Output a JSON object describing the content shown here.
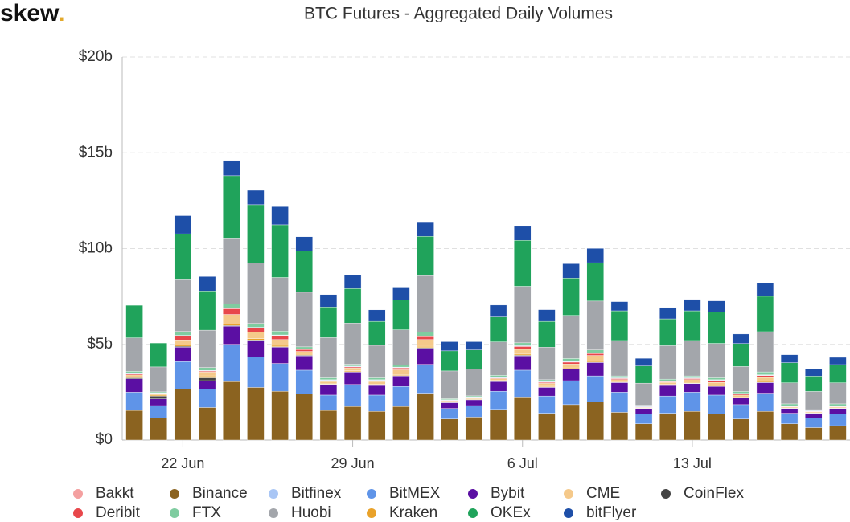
{
  "logo": {
    "text": "skew",
    "dot": "."
  },
  "chart_data": {
    "type": "stacked_bar",
    "title": "BTC Futures - Aggregated Daily Volumes",
    "categories": [
      null,
      null,
      "22 Jun",
      null,
      null,
      null,
      null,
      null,
      null,
      "29 Jun",
      null,
      null,
      null,
      null,
      null,
      null,
      "6 Jul",
      null,
      null,
      null,
      null,
      null,
      null,
      "13 Jul",
      null,
      null,
      null,
      null,
      null,
      null
    ],
    "ylim": [
      0,
      20
    ],
    "yticks": [
      {
        "value": 0,
        "label": "$0"
      },
      {
        "value": 5,
        "label": "$5b"
      },
      {
        "value": 10,
        "label": "$10b"
      },
      {
        "value": 15,
        "label": "$15b"
      },
      {
        "value": 20,
        "label": "$20b"
      }
    ],
    "grid": true,
    "legend": "bottom",
    "series": [
      {
        "name": "Bakkt",
        "color": "#f4a0a0",
        "values": [
          0.01,
          0.01,
          0.01,
          0.01,
          0.01,
          0.01,
          0.01,
          0.01,
          0.01,
          0.01,
          0.01,
          0.01,
          0.01,
          0.01,
          0.01,
          0.01,
          0.01,
          0.01,
          0.01,
          0.01,
          0.01,
          0.01,
          0.01,
          0.01,
          0.01,
          0.01,
          0.01,
          0.01,
          0.01,
          0.01
        ]
      },
      {
        "name": "Binance",
        "color": "#8b6320",
        "values": [
          1.55,
          1.15,
          2.65,
          1.7,
          3.05,
          2.75,
          2.55,
          2.4,
          1.55,
          1.75,
          1.5,
          1.75,
          2.45,
          1.1,
          1.2,
          1.6,
          2.25,
          1.4,
          1.85,
          2.0,
          1.45,
          0.85,
          1.4,
          1.5,
          1.35,
          1.1,
          1.5,
          0.85,
          0.65,
          0.75
        ]
      },
      {
        "name": "Bitfinex",
        "color": "#a9c6f5",
        "values": [
          0.03,
          0.03,
          0.03,
          0.03,
          0.03,
          0.03,
          0.03,
          0.03,
          0.03,
          0.03,
          0.03,
          0.03,
          0.03,
          0.03,
          0.03,
          0.03,
          0.03,
          0.03,
          0.03,
          0.03,
          0.03,
          0.03,
          0.03,
          0.03,
          0.03,
          0.03,
          0.03,
          0.03,
          0.03,
          0.03
        ]
      },
      {
        "name": "BitMEX",
        "color": "#5f94e8",
        "values": [
          0.95,
          0.65,
          1.45,
          0.95,
          1.95,
          1.6,
          1.45,
          1.25,
          0.8,
          1.15,
          0.85,
          1.05,
          1.5,
          0.55,
          0.6,
          0.95,
          1.4,
          0.9,
          1.25,
          1.35,
          1.05,
          0.5,
          0.9,
          1.0,
          1.0,
          0.75,
          0.95,
          0.55,
          0.5,
          0.6
        ]
      },
      {
        "name": "Bybit",
        "color": "#5b0fa3",
        "values": [
          0.7,
          0.35,
          0.75,
          0.45,
          0.95,
          0.85,
          0.85,
          0.75,
          0.55,
          0.65,
          0.5,
          0.55,
          0.85,
          0.3,
          0.3,
          0.5,
          0.75,
          0.45,
          0.6,
          0.7,
          0.5,
          0.3,
          0.55,
          0.45,
          0.45,
          0.35,
          0.55,
          0.25,
          0.25,
          0.3
        ]
      },
      {
        "name": "CME",
        "color": "#f5c98a",
        "values": [
          0.1,
          0.05,
          0.25,
          0.2,
          0.5,
          0.35,
          0.3,
          0.15,
          0.1,
          0.15,
          0.15,
          0.25,
          0.35,
          0.05,
          0.05,
          0.1,
          0.25,
          0.15,
          0.2,
          0.3,
          0.1,
          0.03,
          0.1,
          0.15,
          0.15,
          0.1,
          0.2,
          0.05,
          0.05,
          0.05
        ]
      },
      {
        "name": "CoinFlex",
        "color": "#444444",
        "values": [
          0.05,
          0.15,
          0.05,
          0.15,
          0.03,
          0.03,
          0.03,
          0.03,
          0.02,
          0.02,
          0.02,
          0.02,
          0.03,
          0.02,
          0.02,
          0.02,
          0.03,
          0.02,
          0.02,
          0.02,
          0.02,
          0.01,
          0.02,
          0.02,
          0.02,
          0.02,
          0.02,
          0.01,
          0.01,
          0.01
        ]
      },
      {
        "name": "Deribit",
        "color": "#e8474b",
        "values": [
          0.05,
          0.03,
          0.2,
          0.05,
          0.3,
          0.2,
          0.2,
          0.1,
          0.05,
          0.05,
          0.05,
          0.1,
          0.15,
          0.02,
          0.02,
          0.03,
          0.15,
          0.05,
          0.1,
          0.1,
          0.05,
          0.02,
          0.03,
          0.05,
          0.1,
          0.05,
          0.1,
          0.02,
          0.02,
          0.02
        ]
      },
      {
        "name": "FTX",
        "color": "#7fcca0",
        "values": [
          0.1,
          0.05,
          0.2,
          0.15,
          0.2,
          0.2,
          0.2,
          0.1,
          0.1,
          0.1,
          0.1,
          0.1,
          0.2,
          0.05,
          0.05,
          0.1,
          0.15,
          0.1,
          0.15,
          0.15,
          0.1,
          0.05,
          0.1,
          0.1,
          0.1,
          0.1,
          0.15,
          0.1,
          0.05,
          0.1
        ]
      },
      {
        "name": "Huobi",
        "color": "#a3a6ab",
        "values": [
          1.75,
          1.3,
          2.7,
          1.95,
          3.45,
          3.15,
          2.8,
          2.85,
          2.1,
          2.15,
          1.7,
          1.85,
          2.95,
          1.45,
          1.4,
          1.75,
          2.95,
          1.7,
          2.25,
          2.55,
          1.85,
          1.15,
          1.75,
          1.85,
          1.8,
          1.3,
          2.1,
          1.1,
          0.95,
          1.1
        ]
      },
      {
        "name": "Kraken",
        "color": "#e9a22a",
        "values": [
          0.05,
          0.05,
          0.08,
          0.1,
          0.08,
          0.07,
          0.07,
          0.05,
          0.04,
          0.05,
          0.04,
          0.05,
          0.07,
          0.03,
          0.03,
          0.04,
          0.06,
          0.04,
          0.05,
          0.05,
          0.04,
          0.02,
          0.04,
          0.04,
          0.04,
          0.03,
          0.05,
          0.02,
          0.02,
          0.02
        ]
      },
      {
        "name": "OKEx",
        "color": "#20a35b",
        "values": [
          1.7,
          1.25,
          2.4,
          2.05,
          3.25,
          3.05,
          2.75,
          2.15,
          1.6,
          1.8,
          1.25,
          1.55,
          2.05,
          1.05,
          1.0,
          1.3,
          2.4,
          1.35,
          1.95,
          2.0,
          1.55,
          0.9,
          1.4,
          1.55,
          1.65,
          1.2,
          1.85,
          1.05,
          0.8,
          0.95
        ]
      },
      {
        "name": "bitFlyer",
        "color": "#1e4fa8",
        "values": [
          0,
          0,
          0.95,
          0.75,
          0.8,
          0.75,
          0.95,
          0.75,
          0.65,
          0.7,
          0.6,
          0.68,
          0.72,
          0.48,
          0.43,
          0.62,
          0.73,
          0.61,
          0.75,
          0.75,
          0.48,
          0.4,
          0.59,
          0.6,
          0.57,
          0.5,
          0.69,
          0.42,
          0.36,
          0.38
        ]
      }
    ]
  }
}
